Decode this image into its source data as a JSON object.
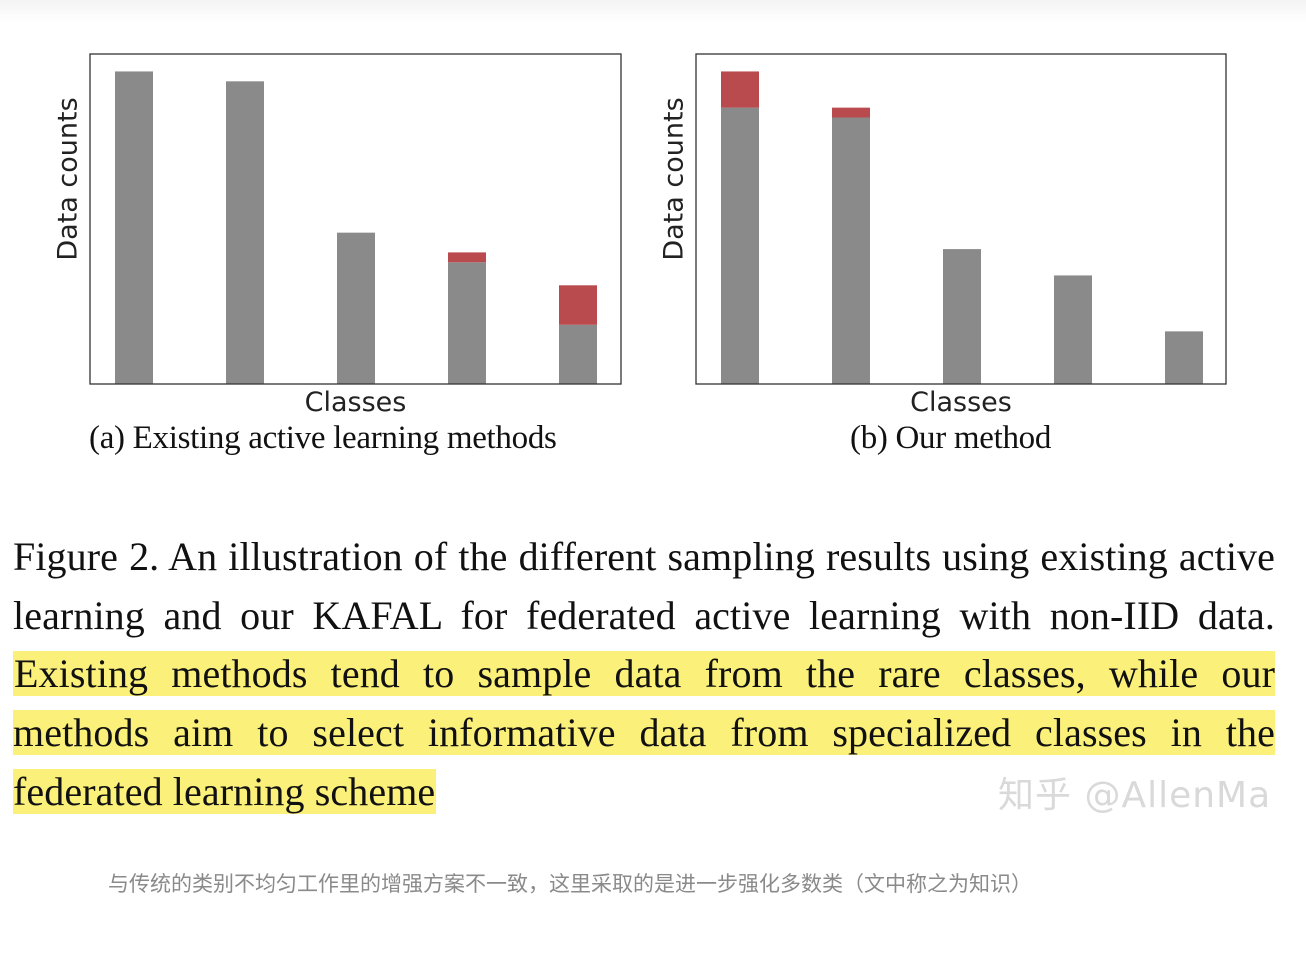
{
  "chart_data": [
    {
      "type": "bar",
      "stacked": true,
      "xlabel": "Classes",
      "ylabel": "Data counts",
      "subcaption": "(a) Existing active learning methods",
      "categories": [
        "",
        "",
        "",
        "",
        ""
      ],
      "ylim": [
        0,
        100
      ],
      "series": [
        {
          "values": [
            95,
            92,
            46,
            37,
            18
          ],
          "color": "#8a8a8a"
        },
        {
          "values": [
            0,
            0,
            0,
            3,
            12
          ],
          "color": "#b94a4d"
        }
      ],
      "grid": false,
      "legend": "none"
    },
    {
      "type": "bar",
      "stacked": true,
      "xlabel": "Classes",
      "ylabel": "Data counts",
      "subcaption": "(b) Our method",
      "categories": [
        "",
        "",
        "",
        "",
        ""
      ],
      "ylim": [
        0,
        100
      ],
      "series": [
        {
          "values": [
            84,
            81,
            41,
            33,
            16
          ],
          "color": "#8a8a8a"
        },
        {
          "values": [
            11,
            3,
            0,
            0,
            0
          ],
          "color": "#b94a4d"
        }
      ],
      "grid": false,
      "legend": "none"
    }
  ],
  "caption": {
    "part1": "Figure 2.  An illustration of the different sampling results using existing active learning and our KAFAL for federated active learning with non-IID data. ",
    "highlighted": "Existing methods tend to sample data from the rare classes, while our methods aim to select informative data from specialized classes in the federated learning scheme",
    "highlight_color": "#fbf07a"
  },
  "watermark": "知乎 @AllenMa",
  "note": "与传统的类别不均匀工作里的增强方案不一致，这里采取的是进一步强化多数类（文中称之为知识）"
}
